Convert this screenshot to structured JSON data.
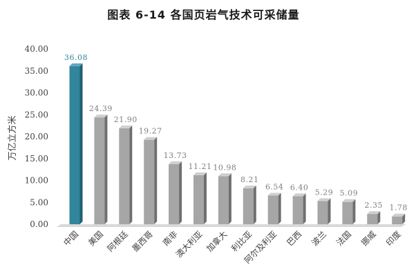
{
  "chart_data": {
    "type": "bar",
    "title": "图表 6-14    各国页岩气技术可采储量",
    "ylabel": "万亿立方米",
    "xlabel": "",
    "ylim": [
      0,
      40
    ],
    "yticks": [
      "0.00",
      "5.00",
      "10.00",
      "15.00",
      "20.00",
      "25.00",
      "30.00",
      "35.00",
      "40.00"
    ],
    "grid": false,
    "legend": "none",
    "style": "3d-columns",
    "categories": [
      "中国",
      "美国",
      "阿根廷",
      "墨西哥",
      "南非",
      "澳大利亚",
      "加拿大",
      "利比亚",
      "阿尔及利亚",
      "巴西",
      "波兰",
      "法国",
      "挪威",
      "印度"
    ],
    "values": [
      36.08,
      24.39,
      21.9,
      19.27,
      13.73,
      11.21,
      10.98,
      8.21,
      6.54,
      6.4,
      5.29,
      5.09,
      2.35,
      1.78
    ],
    "value_labels": [
      "36.08",
      "24.39",
      "21.90",
      "19.27",
      "13.73",
      "11.21",
      "10.98",
      "8.21",
      "6.54",
      "6.40",
      "5.29",
      "5.09",
      "2.35",
      "1.78"
    ],
    "highlight_index": 0,
    "colors": {
      "highlight_front": "#31859c",
      "highlight_side": "#1f5f70",
      "highlight_top": "#5aa9bf",
      "highlight_label": "#31859c",
      "bar_front": "#a6a6a6",
      "bar_side": "#6f6f6f",
      "bar_top": "#cfcfcf",
      "label": "#7f7f7f",
      "axis_text": "#404040",
      "floor": "#d9d9d9"
    }
  }
}
